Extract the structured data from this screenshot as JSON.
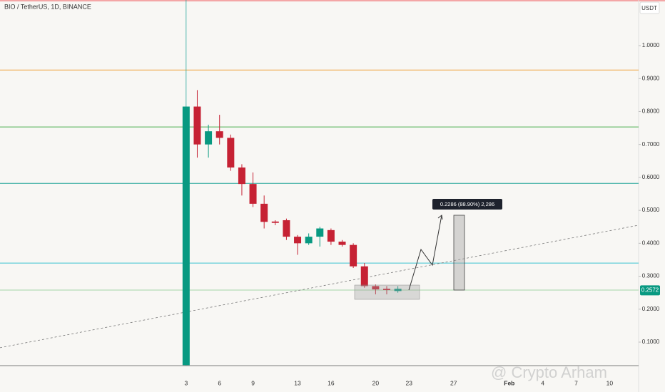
{
  "chart_data": {
    "type": "candlestick",
    "title": "BIO / TetherUS, 1D, BINANCE",
    "y_unit": "USDT",
    "x": [
      3,
      4,
      5,
      6,
      7,
      8,
      9,
      10,
      11,
      12,
      13,
      14,
      15,
      16,
      17,
      18,
      19,
      20,
      21,
      22
    ],
    "open": [
      0.03,
      0.815,
      0.7,
      0.74,
      0.72,
      0.63,
      0.58,
      0.52,
      0.466,
      0.47,
      0.42,
      0.4,
      0.42,
      0.44,
      0.405,
      0.395,
      0.33,
      0.27,
      0.262,
      0.255
    ],
    "high": [
      0.815,
      0.865,
      0.76,
      0.79,
      0.73,
      0.64,
      0.615,
      0.545,
      0.47,
      0.475,
      0.425,
      0.43,
      0.45,
      0.445,
      0.41,
      0.4,
      0.34,
      0.275,
      0.27,
      0.27
    ],
    "low": [
      0.03,
      0.66,
      0.66,
      0.7,
      0.62,
      0.545,
      0.51,
      0.445,
      0.455,
      0.41,
      0.365,
      0.395,
      0.39,
      0.395,
      0.39,
      0.325,
      0.265,
      0.245,
      0.245,
      0.25
    ],
    "close": [
      0.815,
      0.7,
      0.74,
      0.72,
      0.63,
      0.58,
      0.52,
      0.465,
      0.462,
      0.42,
      0.4,
      0.42,
      0.445,
      0.405,
      0.395,
      0.33,
      0.27,
      0.26,
      0.258,
      0.262
    ],
    "up_color": "#089981",
    "down_color": "#c62234",
    "xlim": [
      -13.7,
      43.6
    ],
    "ylim": [
      0.0286,
      1.1385
    ],
    "xticks": [
      3,
      6,
      9,
      13,
      16,
      20,
      23,
      27,
      {
        "value": 32,
        "label": "Feb"
      },
      {
        "value": 35,
        "label": "4"
      },
      {
        "value": 38,
        "label": "7"
      },
      {
        "value": 41,
        "label": "10"
      }
    ],
    "yticks": [
      {
        "value": 0.1,
        "label": "0.1000"
      },
      {
        "value": 0.2,
        "label": "0.2000"
      },
      {
        "value": 0.3,
        "label": "0.3000"
      },
      {
        "value": 0.4,
        "label": "0.4000"
      },
      {
        "value": 0.5,
        "label": "0.5000"
      },
      {
        "value": 0.6,
        "label": "0.6000"
      },
      {
        "value": 0.7,
        "label": "0.7000"
      },
      {
        "value": 0.8,
        "label": "0.8000"
      },
      {
        "value": 0.9,
        "label": "0.9000"
      },
      {
        "value": 1.0,
        "label": "1.0000"
      }
    ],
    "hlines": [
      {
        "value": 0.926,
        "color": "#f0a640"
      },
      {
        "value": 0.753,
        "color": "#4caf50"
      },
      {
        "value": 0.582,
        "color": "#26a69a"
      },
      {
        "value": 0.34,
        "color": "#3cc3d0"
      },
      {
        "value": 0.258,
        "color": "#a5d6a7"
      }
    ],
    "trendline": [
      0.083,
      0.455
    ],
    "last_price": 0.2572,
    "measure_label": "0.2286 (88.90%) 2,286",
    "watermark": "@ Crypto Arham"
  }
}
